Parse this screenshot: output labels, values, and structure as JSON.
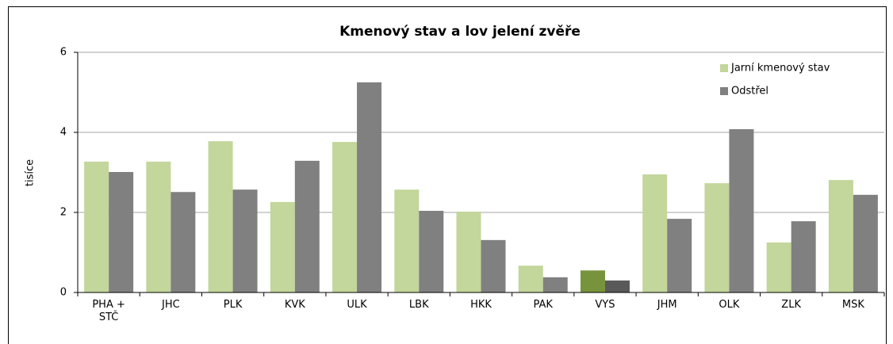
{
  "chart_data": {
    "type": "bar",
    "title": "Kmenový stav a lov jelení zvěře",
    "y_label": "tisíce",
    "categories": [
      "PHA + STČ",
      "JHČ",
      "PLK",
      "KVK",
      "ULK",
      "LBK",
      "HKK",
      "PAK",
      "VYS",
      "JHM",
      "OLK",
      "ZLK",
      "MSK"
    ],
    "series": [
      {
        "name": "Jarní kmenový stav",
        "color": "#c3d69b",
        "colors": [
          "#c3d69b",
          "#c3d69b",
          "#c3d69b",
          "#c3d69b",
          "#c3d69b",
          "#c3d69b",
          "#c3d69b",
          "#c3d69b",
          "#77933c",
          "#c3d69b",
          "#c3d69b",
          "#c3d69b",
          "#c3d69b"
        ],
        "values": [
          3.27,
          3.27,
          3.78,
          2.26,
          3.76,
          2.57,
          2.02,
          0.67,
          0.55,
          2.95,
          2.73,
          1.25,
          2.81
        ]
      },
      {
        "name": "Odstřel",
        "color": "#808080",
        "colors": [
          "#808080",
          "#808080",
          "#808080",
          "#808080",
          "#808080",
          "#808080",
          "#808080",
          "#808080",
          "#595959",
          "#808080",
          "#808080",
          "#808080",
          "#808080"
        ],
        "values": [
          3.01,
          2.51,
          2.57,
          3.29,
          5.25,
          2.04,
          1.31,
          0.38,
          0.3,
          1.84,
          4.08,
          1.78,
          2.44
        ]
      }
    ],
    "ylim": [
      0,
      6
    ],
    "yticks": [
      0,
      2,
      4,
      6
    ],
    "grid": true,
    "legend": "top-right"
  }
}
